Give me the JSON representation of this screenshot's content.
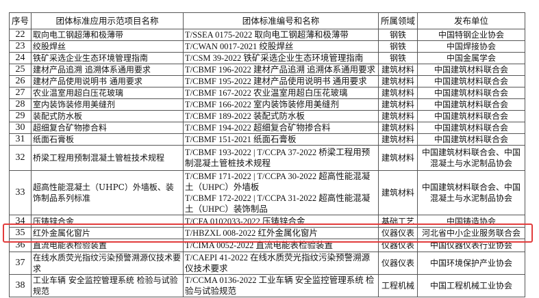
{
  "table": {
    "headers": [
      "序号",
      "团体标准应用示范项目名称",
      "团体标准编号和名称",
      "所属领域",
      "发布单位"
    ],
    "rows": [
      {
        "no": "22",
        "name": "取向电工钢超薄和极薄带",
        "standard": "T/SSEA 0175-2022 取向电工钢超薄和极薄带",
        "field": "钢铁",
        "publisher": "中国特钢企业协会"
      },
      {
        "no": "23",
        "name": "绞股焊丝",
        "standard": "T/CWAN 0017-2021 绞股焊丝",
        "field": "钢铁",
        "publisher": "中国焊接协会"
      },
      {
        "no": "24",
        "name": "铁矿采选企业生态环境管理指南",
        "standard": "T/CSM 39-2022 铁矿采选企业生态环境管理指南",
        "field": "钢铁",
        "publisher": "中国金属学会"
      },
      {
        "no": "25",
        "name": "建材产品追溯 追溯体系通用要求",
        "standard": "T/CBMF 196-2022 建材产品追溯 追溯体系通用要求",
        "field": "建筑材料",
        "publisher": "中国建筑材料联合会"
      },
      {
        "no": "26",
        "name": "建材产品使用说明书 通用要求",
        "standard": "T/CBMF 195-2022 建材产品使用说明书 通用要求",
        "field": "建筑材料",
        "publisher": "中国建筑材料联合会"
      },
      {
        "no": "27",
        "name": "农业温室用超白压花玻璃",
        "standard": "T/CBMF 167-2022 农业温室用超白压花玻璃",
        "field": "建筑材料",
        "publisher": "中国建筑材料联合会"
      },
      {
        "no": "28",
        "name": "室内装饰装修用美缝剂",
        "standard": "T/CBMF 166-2022 室内装饰装修用美缝剂",
        "field": "建筑材料",
        "publisher": "中国建筑材料联合会"
      },
      {
        "no": "29",
        "name": "装配式防水板",
        "standard": "T/CBMF 189-2022 装配式防水板",
        "field": "建筑材料",
        "publisher": "中国建筑材料联合会"
      },
      {
        "no": "30",
        "name": "超细复合矿物掺合料",
        "standard": "T/CBMF 194-2022 超细复合矿物掺合料",
        "field": "建筑材料",
        "publisher": "中国建筑材料联合会"
      },
      {
        "no": "31",
        "name": "纸面石膏板",
        "standard": "T/CBMF 151-2021 纸面石膏板",
        "field": "建筑材料",
        "publisher": "中国建筑材料联合会"
      },
      {
        "no": "32",
        "name": "桥梁工程用预制混凝土管桩技术规程",
        "standard": "T/CBMF 193-2022 | T/CCPA 37-2022 桥梁工程用预制混凝土管桩技术规程",
        "field": "建筑材料",
        "publisher": "中国建筑材料联合会、中国混凝土与水泥制品协会"
      },
      {
        "no": "33",
        "name": "超高性能混凝土（UHPC）外墙板、装饰制品系列标准",
        "standard": "T/CBMF 171-2022 | T/CCPA 30-2022 超高性能混凝土（UHPC）外墙板",
        "standard2": "T/CBMF 172-2022 | T/CCPA 31-2022 超高性能混凝土（UHPC）装饰制品",
        "field": "建筑材料",
        "publisher": "中国建筑材料联合会、中国混凝土与水泥制品协会"
      },
      {
        "no": "34",
        "name": "压铸锌合金",
        "standard": "T/CFA 0102033-2022 压铸锌合金",
        "field": "基础工艺",
        "publisher": "中国铸造协会"
      },
      {
        "no": "35",
        "name": "红外金属化窗片",
        "standard": "T/HBZXL 008-2022 红外金属化窗片",
        "field": "仪器仪表",
        "publisher": "河北省中小企业服务联合会"
      },
      {
        "no": "36",
        "name": "直流电能表检验装置",
        "standard": "T/CIMA 0052-2022 直流电能表检验装置",
        "field": "仪器仪表",
        "publisher": "中国仪器仪表行业协会"
      },
      {
        "no": "37",
        "name": "在线水质荧光指纹污染预警溯源仪技术要求",
        "standard": "T/CAEPI 41-2022 在线水质荧光指纹污染预警溯源仪技术要求",
        "field": "仪器仪表",
        "publisher": "中国环境保护产业协会"
      },
      {
        "no": "38",
        "name": "工业车辆 安全监控管理系统 检验与试验规范",
        "standard": "T/CCMA 0136-2022 工业车辆 安全监控管理系统 检验与试验规范",
        "field": "工程机械",
        "publisher": "中国工程机械工业协会"
      }
    ]
  },
  "highlight": {
    "row_no": "36",
    "color": "#e23b3b"
  }
}
